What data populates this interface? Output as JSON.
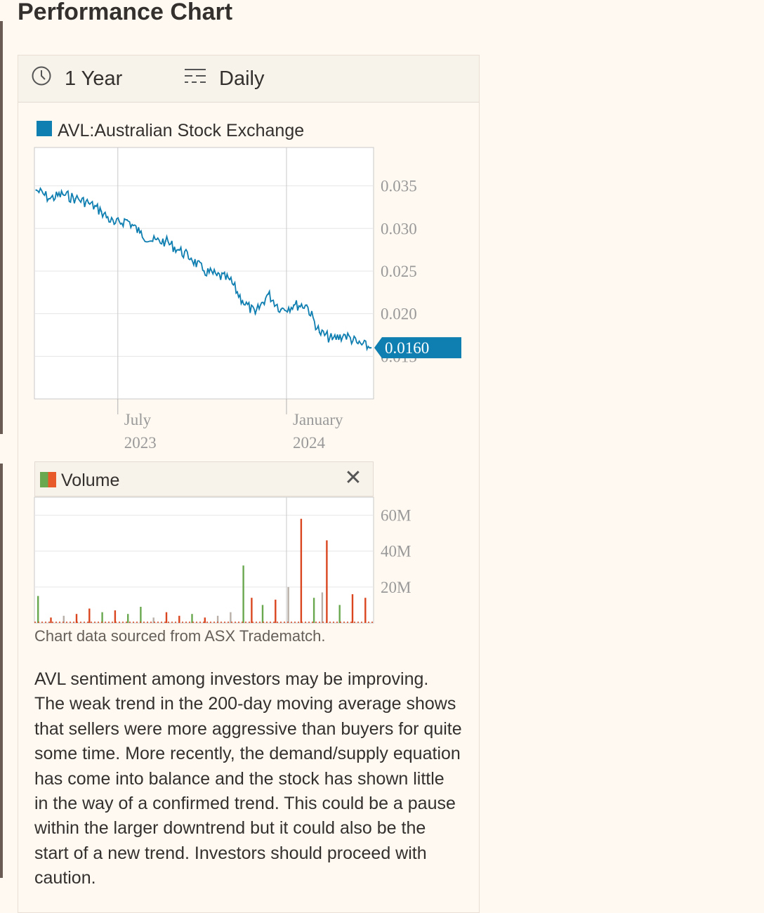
{
  "page": {
    "title": "Performance Chart"
  },
  "controls": {
    "period_label": "1 Year",
    "interval_label": "Daily"
  },
  "legend": {
    "series_label": "AVL:Australian Stock Exchange"
  },
  "colors": {
    "price_line": "#0f7eb0",
    "volume_up": "#6aa84f",
    "volume_down": "#d9461f",
    "volume_flat": "#b8b0a8",
    "gridline": "#e6e6e6"
  },
  "volume_panel": {
    "label": "Volume",
    "close_icon": "close-icon"
  },
  "note": {
    "source": "Chart data sourced from ASX Tradematch."
  },
  "analysis": {
    "text": "AVL sentiment among investors may be improving. The weak trend in the 200-day moving average shows that sellers were more aggressive than buyers for quite some time. More recently, the demand/supply equation has come into balance and the stock has shown little in the way of a confirmed trend. This could be a pause within the larger downtrend but it could also be the start of a new trend. Investors should proceed with caution."
  },
  "chart_data": [
    {
      "type": "line",
      "title": "",
      "series": [
        {
          "name": "AVL:Australian Stock Exchange",
          "x": [
            "2023-04-03",
            "2023-04-18",
            "2023-05-02",
            "2023-05-16",
            "2023-05-30",
            "2023-06-13",
            "2023-06-27",
            "2023-07-11",
            "2023-07-25",
            "2023-08-08",
            "2023-08-22",
            "2023-09-05",
            "2023-09-19",
            "2023-10-03",
            "2023-10-17",
            "2023-10-31",
            "2023-11-14",
            "2023-11-28",
            "2023-12-12",
            "2023-12-26",
            "2024-01-09",
            "2024-01-23",
            "2024-02-06",
            "2024-02-20",
            "2024-03-05",
            "2024-03-19",
            "2024-04-02"
          ],
          "values": [
            0.0345,
            0.0335,
            0.034,
            0.0335,
            0.033,
            0.032,
            0.0305,
            0.031,
            0.0295,
            0.0285,
            0.0285,
            0.0275,
            0.0265,
            0.025,
            0.0245,
            0.024,
            0.0215,
            0.02,
            0.0223,
            0.0205,
            0.021,
            0.021,
            0.0178,
            0.017,
            0.0175,
            0.0165,
            0.016
          ]
        }
      ],
      "ylim": [
        0.01,
        0.0395
      ],
      "y_ticks": [
        "0.035",
        "0.030",
        "0.025",
        "0.020",
        "0.015"
      ],
      "x_ticks": [
        {
          "date": "2023-07-01",
          "month": "July",
          "year": "2023"
        },
        {
          "date": "2024-01-01",
          "month": "January",
          "year": "2024"
        }
      ],
      "last_value_label": "0.0160",
      "grid": true
    },
    {
      "type": "bar",
      "title": "Volume",
      "series_name": "Volume",
      "ylim": [
        0,
        70
      ],
      "y_unit": "M",
      "y_ticks": [
        "60M",
        "40M",
        "20M"
      ],
      "dates": [
        "2023-04-05",
        "2023-04-19",
        "2023-05-03",
        "2023-05-17",
        "2023-05-31",
        "2023-06-14",
        "2023-06-28",
        "2023-07-12",
        "2023-07-26",
        "2023-08-09",
        "2023-08-23",
        "2023-09-06",
        "2023-09-20",
        "2023-10-04",
        "2023-10-18",
        "2023-11-01",
        "2023-11-15",
        "2023-11-24",
        "2023-12-06",
        "2023-12-20",
        "2024-01-03",
        "2024-01-17",
        "2024-01-31",
        "2024-02-09",
        "2024-02-14",
        "2024-02-28",
        "2024-03-13",
        "2024-03-27"
      ],
      "values": [
        15,
        3,
        4,
        5,
        8,
        6,
        7,
        5,
        9,
        3,
        6,
        4,
        5,
        3,
        4,
        6,
        32,
        14,
        10,
        13,
        20,
        58,
        14,
        17,
        46,
        10,
        16,
        14
      ],
      "direction": [
        "up",
        "down",
        "flat",
        "down",
        "down",
        "up",
        "down",
        "up",
        "up",
        "flat",
        "down",
        "down",
        "up",
        "down",
        "flat",
        "flat",
        "up",
        "down",
        "up",
        "down",
        "flat",
        "down",
        "up",
        "flat",
        "down",
        "up",
        "down",
        "down"
      ]
    }
  ]
}
